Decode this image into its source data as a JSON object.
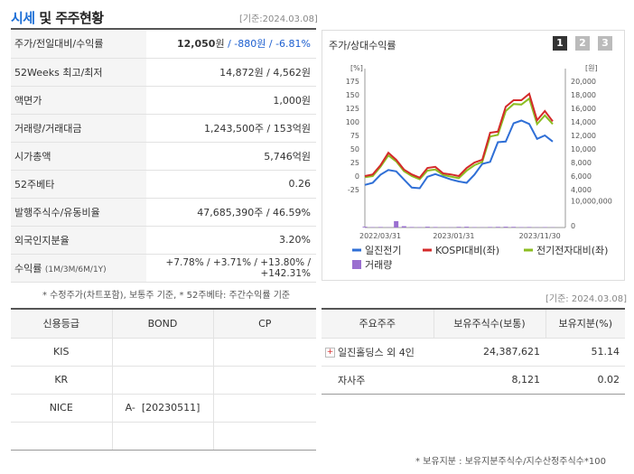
{
  "header": {
    "title_main": "시세",
    "title_rest": " 및 주주현황",
    "date": "[기준:2024.03.08]"
  },
  "quote_rows": [
    {
      "label": "주가/전일대비/수익률",
      "price": "12,050",
      "price_unit": "원",
      "change": " / -880원",
      "pct": " / -6.81%"
    },
    {
      "label": "52Weeks 최고/최저",
      "value": "14,872원 / 4,562원"
    },
    {
      "label": "액면가",
      "value": "1,000원"
    },
    {
      "label": "거래량/거래대금",
      "value": "1,243,500주 / 153억원"
    },
    {
      "label": "시가총액",
      "value": "5,746억원"
    },
    {
      "label": "52주베타",
      "value": "0.26"
    },
    {
      "label": "발행주식수/유동비율",
      "value": "47,685,390주 / 46.59%"
    },
    {
      "label": "외국인지분율",
      "value": "3.20%"
    },
    {
      "label": "수익률",
      "label_small": "(1M/3M/6M/1Y)",
      "value": "+7.78% / +3.71% / +13.80% / +142.31%"
    }
  ],
  "footnote_quote": "* 수정주가(차트포함), 보통주 기준, * 52주베타: 주간수익률 기준",
  "footnote_date": "[기준: 2024.03.08]",
  "chart_panel": {
    "title": "주가/상대수익률",
    "buttons": [
      "1",
      "2",
      "3"
    ],
    "active_button": "1"
  },
  "chart_data": {
    "type": "line",
    "title": "주가/상대수익률",
    "left_unit": "[%]",
    "right_unit": "[원]",
    "left_ticks": [
      "175",
      "150",
      "125",
      "100",
      "75",
      "50",
      "25",
      "0",
      "-25"
    ],
    "right_ticks": [
      "20,000",
      "18,000",
      "16,000",
      "14,000",
      "12,000",
      "10,000",
      "8,000",
      "6,000",
      "4,000"
    ],
    "volume_ticks": [
      "10,000,000",
      "0"
    ],
    "x_tick_labels": [
      "2022/03/31",
      "2023/01/31",
      "2023/11/30"
    ],
    "ylim_left": [
      -25,
      175
    ],
    "ylim_right": [
      4000,
      20000
    ],
    "series": [
      {
        "name": "일진전기",
        "color": "#2f6fd6",
        "axis": "right",
        "values": [
          4700,
          5000,
          6200,
          6900,
          6700,
          5500,
          4300,
          4200,
          5900,
          6300,
          5900,
          5500,
          5200,
          5000,
          6200,
          7800,
          8100,
          11000,
          11100,
          13800,
          14200,
          13700,
          11500,
          12000,
          11100
        ]
      },
      {
        "name": "KOSPI대비(좌)",
        "color": "#d42a2a",
        "axis": "left",
        "values": [
          0,
          3,
          20,
          43,
          30,
          12,
          3,
          -3,
          15,
          17,
          5,
          3,
          0,
          15,
          25,
          30,
          80,
          82,
          128,
          140,
          140,
          152,
          103,
          120,
          101
        ]
      },
      {
        "name": "전기전자대비(좌)",
        "color": "#8cbd22",
        "axis": "left",
        "values": [
          -2,
          0,
          17,
          38,
          27,
          9,
          0,
          -6,
          10,
          12,
          2,
          -1,
          -4,
          10,
          20,
          26,
          73,
          76,
          120,
          133,
          132,
          143,
          96,
          112,
          96
        ]
      },
      {
        "name": "거래량",
        "color": "#9a6fd0",
        "axis": "volume",
        "values": [
          300000,
          150000,
          200000,
          100000,
          2400000,
          500000,
          200000,
          150000,
          300000,
          200000,
          100000,
          100000,
          250000,
          300000,
          150000,
          100000,
          200000,
          250000,
          300000,
          250000,
          150000,
          200000,
          100000,
          150000,
          100000
        ]
      }
    ]
  },
  "credit": {
    "headers": [
      "신용등급",
      "BOND",
      "CP"
    ],
    "rows": [
      [
        "KIS",
        "",
        ""
      ],
      [
        "KR",
        "",
        ""
      ],
      [
        "NICE",
        "A-  [20230511]",
        ""
      ],
      [
        "",
        "",
        ""
      ]
    ]
  },
  "holders": {
    "headers": [
      "주요주주",
      "보유주식수(보통)",
      "보유지분(%)"
    ],
    "rows": [
      {
        "name": "일진홀딩스 외 4인",
        "shares": "24,387,621",
        "pct": "51.14",
        "expand": "+"
      },
      {
        "name": "자사주",
        "shares": "8,121",
        "pct": "0.02",
        "expand": ""
      }
    ]
  },
  "footnote_holders": "* 보유지분 : 보유지분주식수/지수산정주식수*100"
}
